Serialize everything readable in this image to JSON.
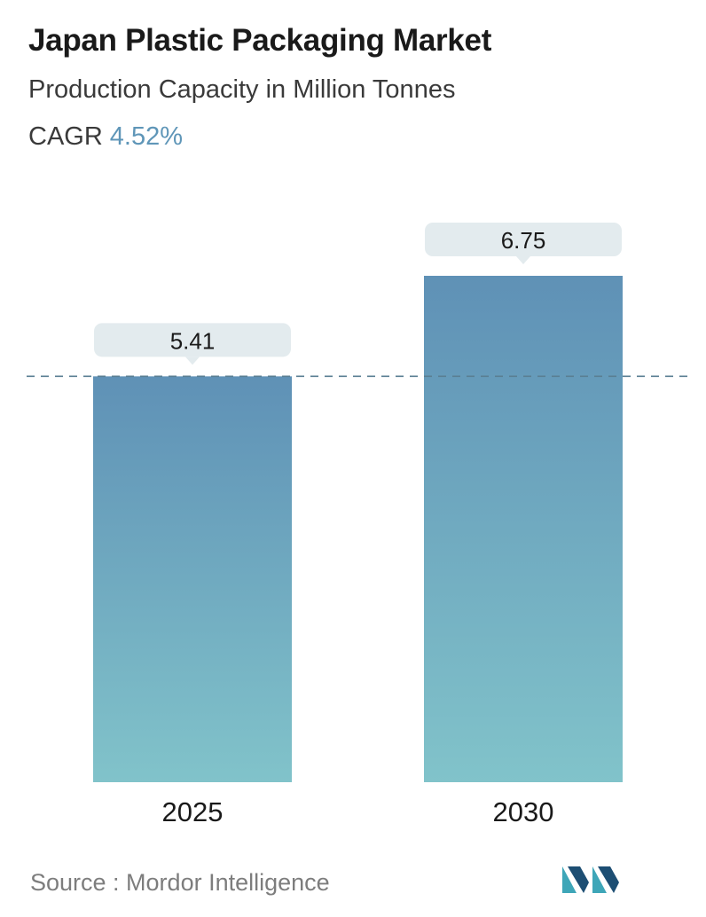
{
  "header": {
    "title": "Japan Plastic Packaging Market",
    "subtitle": "Production Capacity in Million Tonnes",
    "cagr_label": "CAGR",
    "cagr_value": "4.52%"
  },
  "chart_data": {
    "type": "bar",
    "categories": [
      "2025",
      "2030"
    ],
    "values": [
      5.41,
      6.75
    ],
    "data_labels": [
      "5.41",
      "6.75"
    ],
    "title": "Japan Plastic Packaging Market",
    "subtitle": "Production Capacity in Million Tonnes",
    "ylim": [
      0,
      6.75
    ],
    "reference_line": 5.41,
    "grid": false,
    "colors": {
      "bar_top": "#5f91b6",
      "bar_bottom": "#81c3ca",
      "label_bg": "#e3ebee",
      "reference_line": "#5a7f93",
      "accent": "#5f96b8"
    }
  },
  "footer": {
    "source": "Source :  Mordor Intelligence",
    "logo_icon": "mordor-intelligence-logo"
  }
}
